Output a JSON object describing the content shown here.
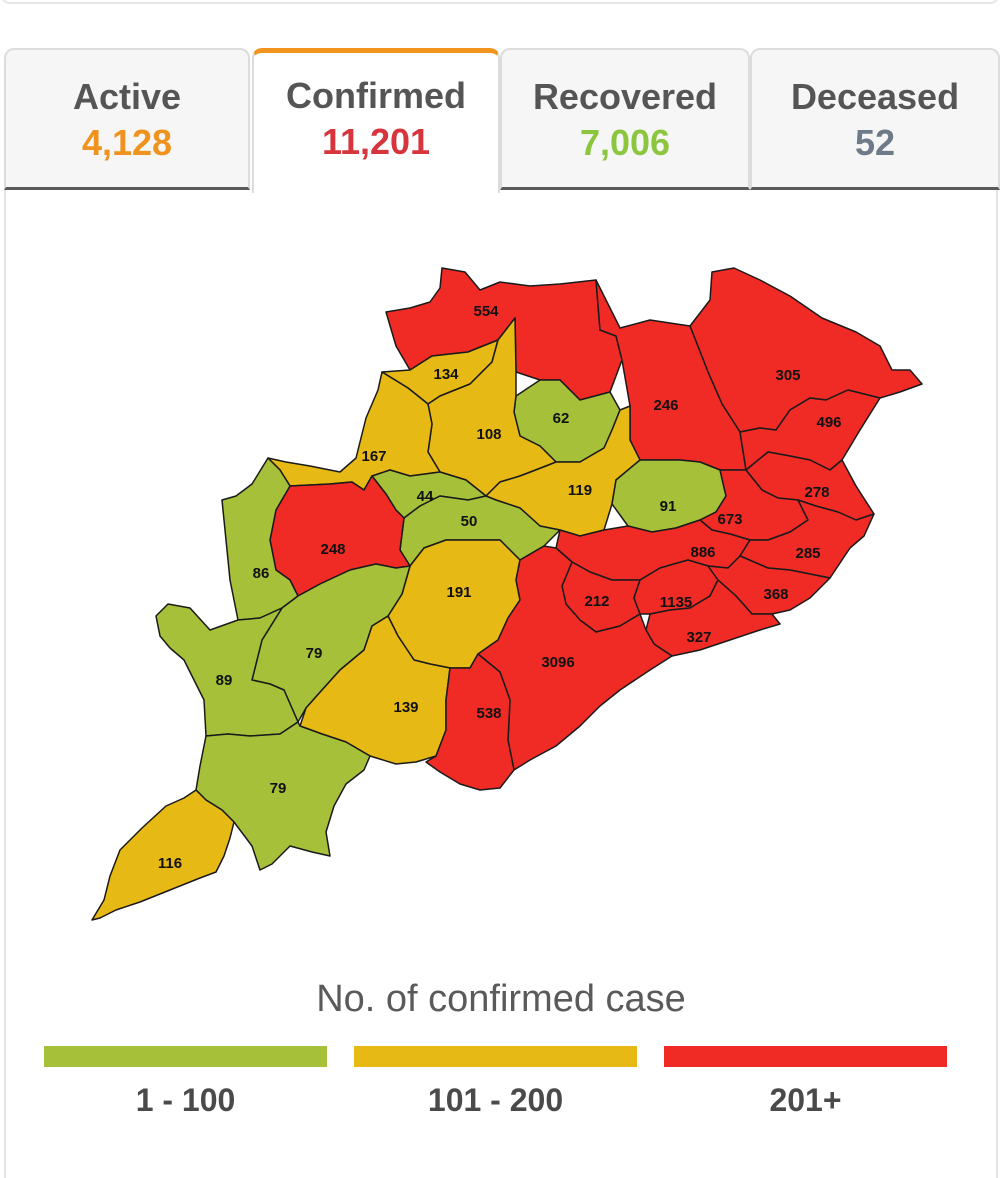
{
  "tabs": [
    {
      "label": "Active",
      "value": "4,128",
      "color": "#f0921e",
      "active": false
    },
    {
      "label": "Confirmed",
      "value": "11,201",
      "color": "#d7353d",
      "active": true
    },
    {
      "label": "Recovered",
      "value": "7,006",
      "color": "#8cc63f",
      "active": false
    },
    {
      "label": "Deceased",
      "value": "52",
      "color": "#6c7a89",
      "active": false
    }
  ],
  "map": {
    "district_counts": [
      {
        "label": "554",
        "category": "high"
      },
      {
        "label": "134",
        "category": "mid"
      },
      {
        "label": "305",
        "category": "high"
      },
      {
        "label": "246",
        "category": "high"
      },
      {
        "label": "496",
        "category": "high"
      },
      {
        "label": "62",
        "category": "low"
      },
      {
        "label": "108",
        "category": "mid"
      },
      {
        "label": "167",
        "category": "mid"
      },
      {
        "label": "44",
        "category": "low"
      },
      {
        "label": "119",
        "category": "mid"
      },
      {
        "label": "91",
        "category": "low"
      },
      {
        "label": "278",
        "category": "high"
      },
      {
        "label": "50",
        "category": "low"
      },
      {
        "label": "673",
        "category": "high"
      },
      {
        "label": "248",
        "category": "high"
      },
      {
        "label": "86",
        "category": "low"
      },
      {
        "label": "886",
        "category": "high"
      },
      {
        "label": "285",
        "category": "high"
      },
      {
        "label": "191",
        "category": "mid"
      },
      {
        "label": "212",
        "category": "high"
      },
      {
        "label": "1135",
        "category": "high"
      },
      {
        "label": "368",
        "category": "high"
      },
      {
        "label": "327",
        "category": "high"
      },
      {
        "label": "79",
        "category": "low"
      },
      {
        "label": "3096",
        "category": "high"
      },
      {
        "label": "89",
        "category": "low"
      },
      {
        "label": "139",
        "category": "mid"
      },
      {
        "label": "538",
        "category": "high"
      },
      {
        "label": "79",
        "category": "low"
      },
      {
        "label": "116",
        "category": "mid"
      }
    ]
  },
  "legend": {
    "title": "No. of confirmed case",
    "items": [
      {
        "label": "1 - 100",
        "color": "#a6c03a"
      },
      {
        "label": "101 - 200",
        "color": "#e6b915"
      },
      {
        "label": "201+",
        "color": "#f02b26"
      }
    ]
  },
  "colors": {
    "low": "#a6c03a",
    "mid": "#e6b915",
    "high": "#f02b26"
  }
}
